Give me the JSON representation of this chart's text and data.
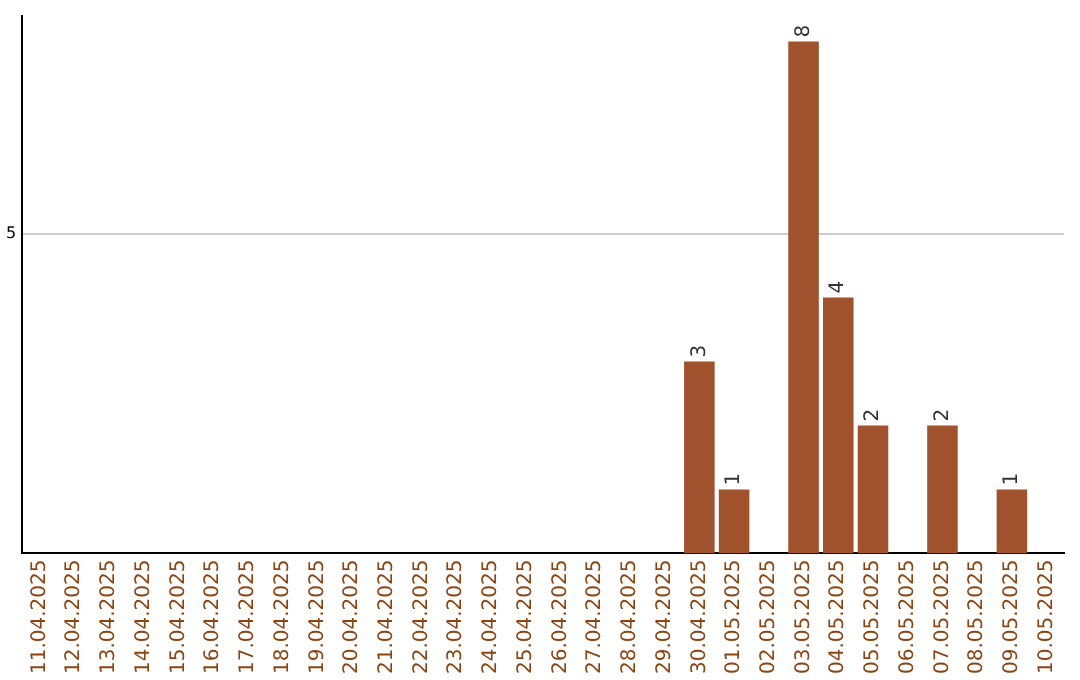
{
  "chart_data": {
    "type": "bar",
    "categories": [
      "11.04.2025",
      "12.04.2025",
      "13.04.2025",
      "14.04.2025",
      "15.04.2025",
      "16.04.2025",
      "17.04.2025",
      "18.04.2025",
      "19.04.2025",
      "20.04.2025",
      "21.04.2025",
      "22.04.2025",
      "23.04.2025",
      "24.04.2025",
      "25.04.2025",
      "26.04.2025",
      "27.04.2025",
      "28.04.2025",
      "29.04.2025",
      "30.04.2025",
      "01.05.2025",
      "02.05.2025",
      "03.05.2025",
      "04.05.2025",
      "05.05.2025",
      "06.05.2025",
      "07.05.2025",
      "08.05.2025",
      "09.05.2025",
      "10.05.2025"
    ],
    "values": [
      null,
      null,
      null,
      null,
      null,
      null,
      null,
      null,
      null,
      null,
      null,
      null,
      null,
      null,
      null,
      null,
      null,
      null,
      null,
      3,
      1,
      null,
      8,
      4,
      2,
      null,
      2,
      null,
      1,
      null
    ],
    "color": "#a0522d",
    "ylim": [
      0,
      8.4
    ],
    "yticks": [
      5
    ],
    "grid": "y",
    "data_labels": true,
    "legend": false
  }
}
